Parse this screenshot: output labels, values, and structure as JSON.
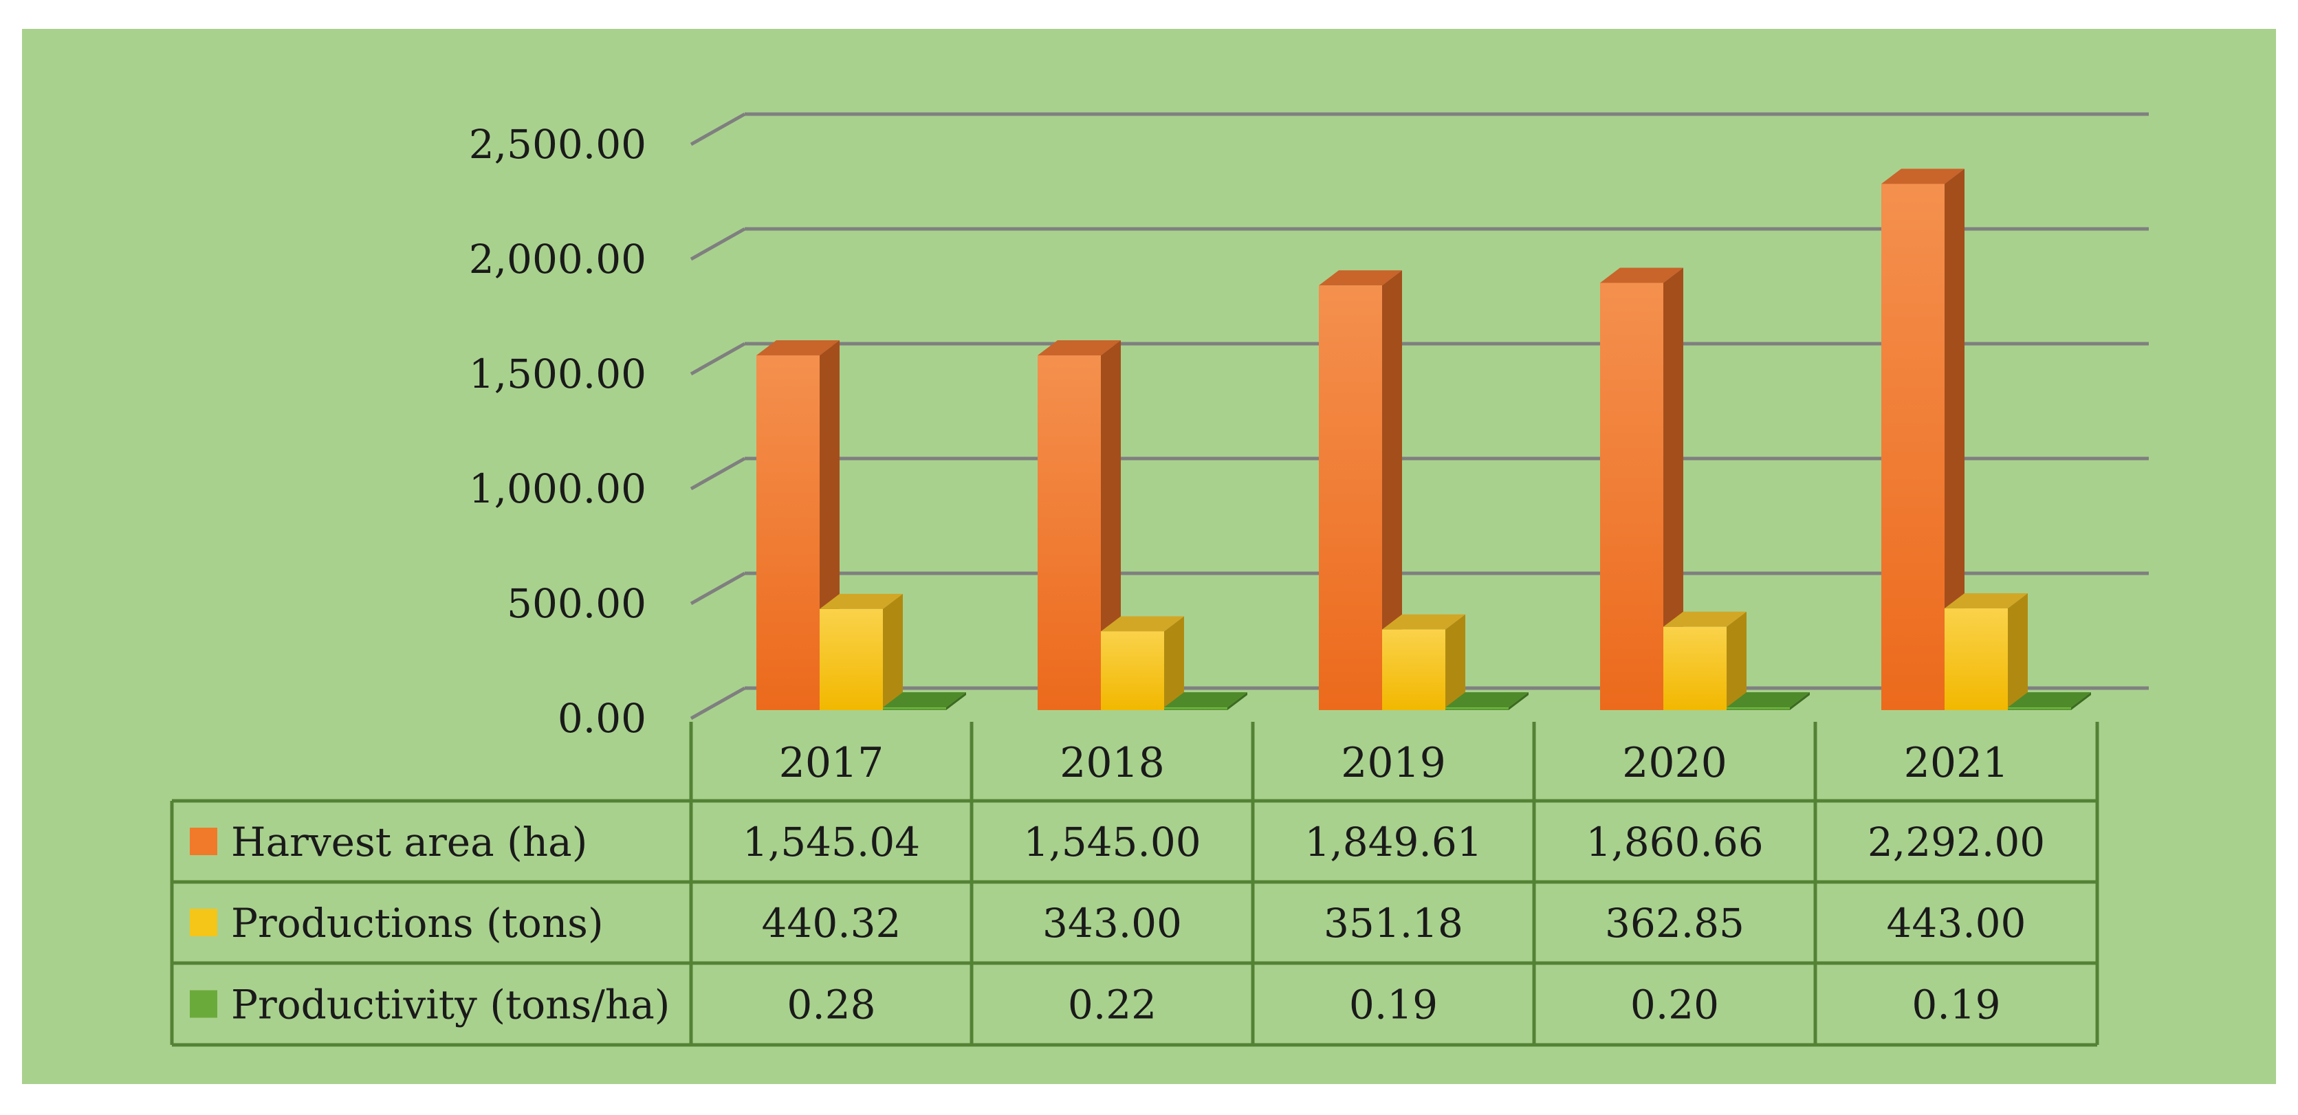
{
  "chart_data": {
    "type": "bar",
    "style": "3d-clustered-column-with-data-table",
    "title": "",
    "xlabel": "",
    "ylabel": "",
    "ylim": [
      0,
      2500
    ],
    "y_ticks": [
      0,
      500,
      1000,
      1500,
      2000,
      2500
    ],
    "y_tick_labels": [
      "0.00",
      "500.00",
      "1,000.00",
      "1,500.00",
      "2,000.00",
      "2,500.00"
    ],
    "grid": true,
    "categories": [
      "2017",
      "2018",
      "2019",
      "2020",
      "2021"
    ],
    "series": [
      {
        "name": "Harvest area (ha)",
        "color": "#F07A2A",
        "values": [
          1545.04,
          1545.0,
          1849.61,
          1860.66,
          2292.0
        ],
        "labels": [
          "1,545.04",
          "1,545.00",
          "1,849.61",
          "1,860.66",
          "2,292.00"
        ]
      },
      {
        "name": "Productions (tons)",
        "color": "#F5C518",
        "values": [
          440.32,
          343.0,
          351.18,
          362.85,
          443.0
        ],
        "labels": [
          "440.32",
          "343.00",
          "351.18",
          "362.85",
          "443.00"
        ]
      },
      {
        "name": "Productivity (tons/ha)",
        "color": "#6AAA3A",
        "values": [
          0.28,
          0.22,
          0.19,
          0.2,
          0.19
        ],
        "labels": [
          "0.28",
          "0.22",
          "0.19",
          "0.20",
          "0.19"
        ]
      }
    ],
    "colors": {
      "background": "#A9D18E",
      "gridline": "#7F7F7F",
      "table_border": "#548235"
    }
  }
}
